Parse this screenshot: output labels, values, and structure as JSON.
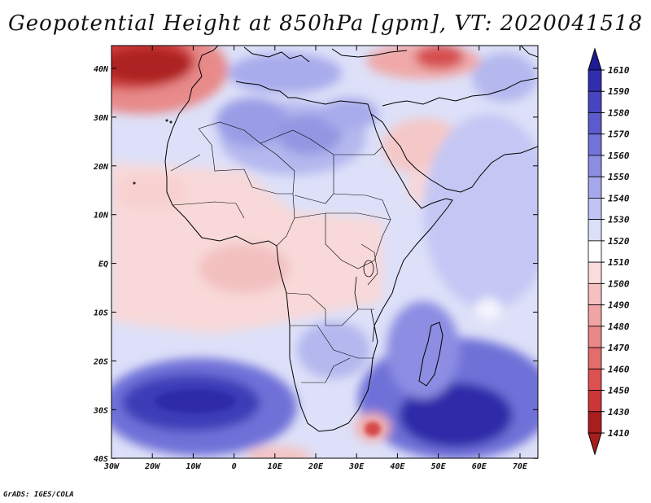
{
  "title": "Geopotential Height at 850hPa [gpm], VT: 2020041518",
  "credit": "GrADS: IGES/COLA",
  "axes": {
    "lat_labels": [
      "40N",
      "30N",
      "20N",
      "10N",
      "EQ",
      "10S",
      "20S",
      "30S",
      "40S"
    ],
    "lon_labels": [
      "30W",
      "20W",
      "10W",
      "0",
      "10E",
      "20E",
      "30E",
      "40E",
      "50E",
      "60E",
      "70E"
    ]
  },
  "legend": {
    "levels": [
      {
        "label": "1610",
        "color": "#1e1a96"
      },
      {
        "label": "1590",
        "color": "#312eae"
      },
      {
        "label": "1580",
        "color": "#4644be"
      },
      {
        "label": "1570",
        "color": "#5b5bcd"
      },
      {
        "label": "1560",
        "color": "#7273da"
      },
      {
        "label": "1550",
        "color": "#8c8de3"
      },
      {
        "label": "1540",
        "color": "#a6a8ec"
      },
      {
        "label": "1530",
        "color": "#c0c3f3"
      },
      {
        "label": "1520",
        "color": "#dcdff9"
      },
      {
        "label": "1510",
        "color": "#ffffff"
      },
      {
        "label": "1500",
        "color": "#fadcdc"
      },
      {
        "label": "1490",
        "color": "#f5c0c0"
      },
      {
        "label": "1480",
        "color": "#f0a4a4"
      },
      {
        "label": "1470",
        "color": "#ea8888"
      },
      {
        "label": "1460",
        "color": "#e46c6c"
      },
      {
        "label": "1450",
        "color": "#dc5050"
      },
      {
        "label": "1430",
        "color": "#cc3636"
      },
      {
        "label": "1410",
        "color": "#a81e1e"
      }
    ]
  }
}
